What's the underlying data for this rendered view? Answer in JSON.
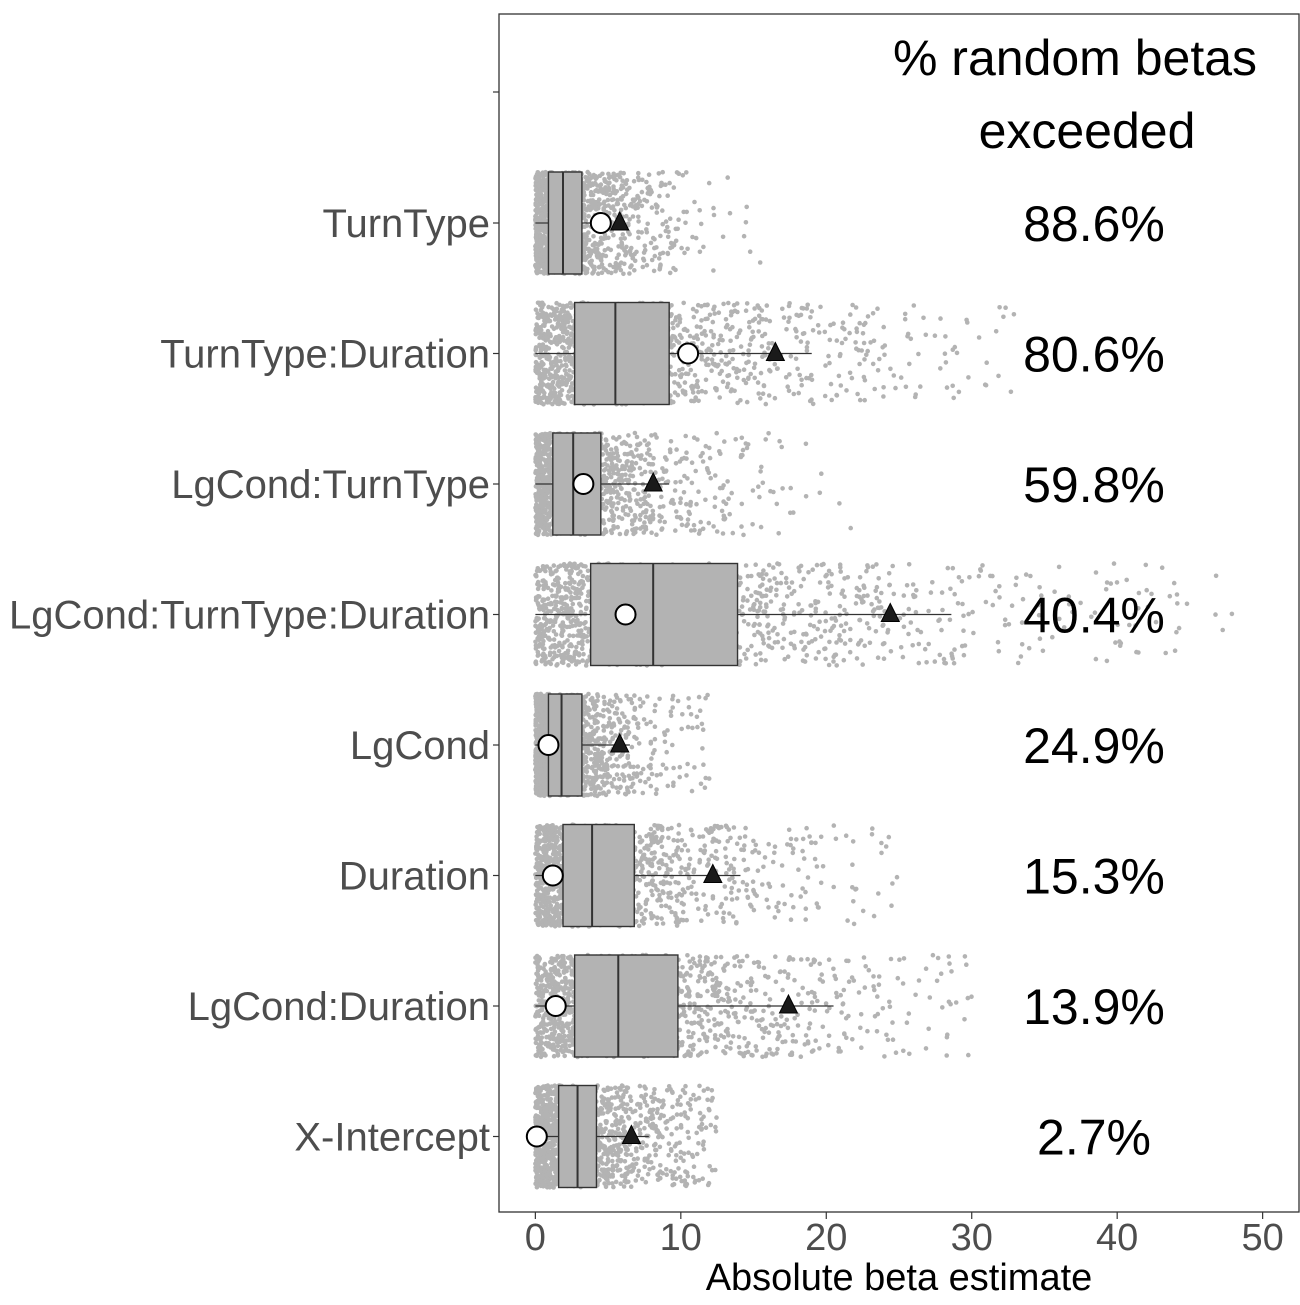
{
  "chart_data": {
    "type": "boxplot",
    "xlabel": "Absolute beta estimate",
    "xlim": [
      -2.5,
      52.5
    ],
    "x_ticks": [
      0,
      10,
      20,
      30,
      40,
      50
    ],
    "x_tick_labels": [
      "0",
      "10",
      "20",
      "30",
      "40",
      "50"
    ],
    "annotation_header": [
      "% random betas",
      "exceeded"
    ],
    "grid": false,
    "legend": "none",
    "colors": {
      "points": "#b3b3b3",
      "box_fill": "#b3b3b3",
      "box_stroke": "#333333",
      "circle_fill": "#ffffff",
      "triangle_fill": "#1a1a1a",
      "text": "#000000",
      "axis_text": "#4d4d4d"
    },
    "categories": [
      {
        "label": "TurnType",
        "percent": "88.6%",
        "q1": 0.9,
        "median": 1.9,
        "q3": 3.2,
        "whisker_low": 0,
        "whisker_high": 4.3,
        "circle": 4.5,
        "triangle": 5.8,
        "spread_max": 16
      },
      {
        "label": "TurnType:Duration",
        "percent": "80.6%",
        "q1": 2.7,
        "median": 5.5,
        "q3": 9.2,
        "whisker_low": 0,
        "whisker_high": 19,
        "circle": 10.5,
        "triangle": 16.5,
        "spread_max": 33
      },
      {
        "label": "LgCond:TurnType",
        "percent": "59.8%",
        "q1": 1.2,
        "median": 2.6,
        "q3": 4.5,
        "whisker_low": 0,
        "whisker_high": 9.2,
        "circle": 3.3,
        "triangle": 8.1,
        "spread_max": 22
      },
      {
        "label": "LgCond:TurnType:Duration",
        "percent": "40.4%",
        "q1": 3.8,
        "median": 8.1,
        "q3": 13.9,
        "whisker_low": 0,
        "whisker_high": 28.6,
        "circle": 6.2,
        "triangle": 24.4,
        "spread_max": 48
      },
      {
        "label": "LgCond",
        "percent": "24.9%",
        "q1": 0.9,
        "median": 1.8,
        "q3": 3.2,
        "whisker_low": 0,
        "whisker_high": 6.5,
        "circle": 0.9,
        "triangle": 5.8,
        "spread_max": 12
      },
      {
        "label": "Duration",
        "percent": "15.3%",
        "q1": 1.9,
        "median": 3.9,
        "q3": 6.8,
        "whisker_low": 0,
        "whisker_high": 14.1,
        "circle": 1.2,
        "triangle": 12.2,
        "spread_max": 25
      },
      {
        "label": "LgCond:Duration",
        "percent": "13.9%",
        "q1": 2.7,
        "median": 5.7,
        "q3": 9.8,
        "whisker_low": 0,
        "whisker_high": 20.5,
        "circle": 1.4,
        "triangle": 17.4,
        "spread_max": 30
      },
      {
        "label": "X-Intercept",
        "percent": "2.7%",
        "q1": 1.6,
        "median": 2.9,
        "q3": 4.2,
        "whisker_low": 0,
        "whisker_high": 7.8,
        "circle": 0.1,
        "triangle": 6.6,
        "spread_max": 12.5
      }
    ]
  }
}
